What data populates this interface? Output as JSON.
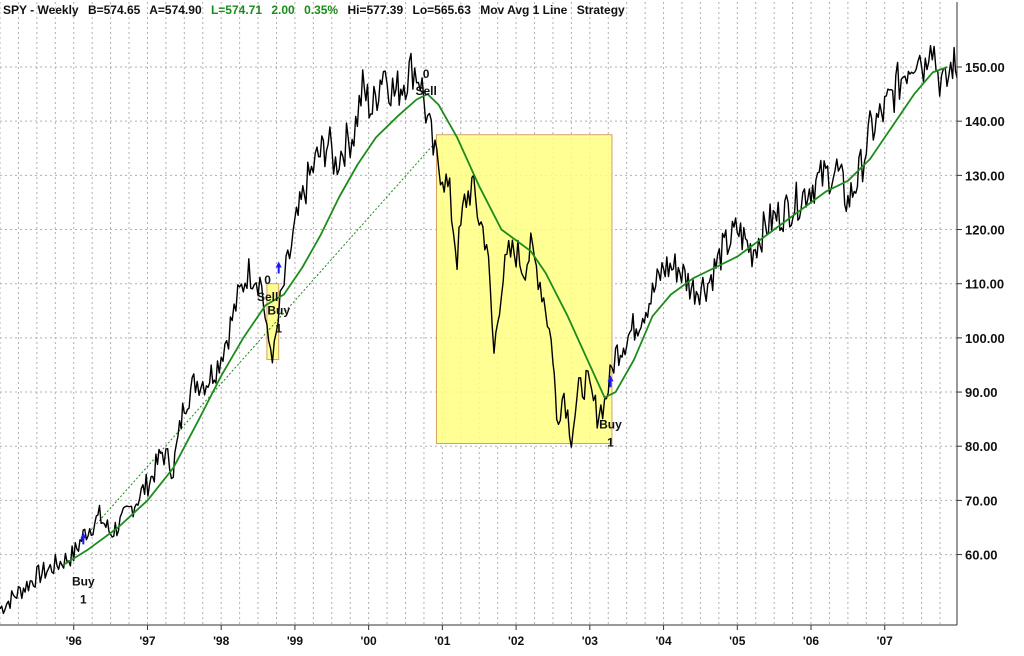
{
  "header": {
    "symbol": "SPY - Weekly",
    "bid": "B=574.65",
    "ask": "A=574.90",
    "last": "L=574.71",
    "change": "2.00",
    "change_pct": "0.35%",
    "hi": "Hi=577.39",
    "lo": "Lo=565.63",
    "study": "Mov Avg 1 Line",
    "strategy": "Strategy",
    "last_color": "#1a8c1a"
  },
  "chart_data": {
    "type": "line",
    "title": "",
    "x_range": [
      1995.0,
      2007.98
    ],
    "y_range": [
      47,
      162
    ],
    "y_ticks": [
      "60.00",
      "70.00",
      "80.00",
      "90.00",
      "100.00",
      "110.00",
      "120.00",
      "130.00",
      "140.00",
      "150.00"
    ],
    "x_ticks": [
      {
        "label": "'96",
        "x": 1996.0
      },
      {
        "label": "'97",
        "x": 1997.0
      },
      {
        "label": "'98",
        "x": 1998.0
      },
      {
        "label": "'99",
        "x": 1999.0
      },
      {
        "label": "'00",
        "x": 2000.0
      },
      {
        "label": "'01",
        "x": 2001.0
      },
      {
        "label": "'02",
        "x": 2002.0
      },
      {
        "label": "'03",
        "x": 2003.0
      },
      {
        "label": "'04",
        "x": 2004.0
      },
      {
        "label": "'05",
        "x": 2005.0
      },
      {
        "label": "'06",
        "x": 2006.0
      },
      {
        "label": "'07",
        "x": 2007.0
      }
    ],
    "grid": true,
    "series": [
      {
        "key": "price",
        "color": "#000000",
        "points": [
          [
            1995.0,
            50
          ],
          [
            1995.25,
            53
          ],
          [
            1995.5,
            56
          ],
          [
            1995.75,
            58
          ],
          [
            1996.0,
            60
          ],
          [
            1996.15,
            64
          ],
          [
            1996.35,
            67
          ],
          [
            1996.5,
            64
          ],
          [
            1996.65,
            66
          ],
          [
            1996.85,
            70
          ],
          [
            1997.05,
            74
          ],
          [
            1997.2,
            79
          ],
          [
            1997.35,
            76
          ],
          [
            1997.5,
            88
          ],
          [
            1997.65,
            92
          ],
          [
            1997.8,
            92
          ],
          [
            1997.95,
            95
          ],
          [
            1998.1,
            101
          ],
          [
            1998.2,
            106
          ],
          [
            1998.35,
            112
          ],
          [
            1998.45,
            112
          ],
          [
            1998.55,
            110
          ],
          [
            1998.62,
            100
          ],
          [
            1998.72,
            97
          ],
          [
            1998.8,
            106
          ],
          [
            1998.88,
            112
          ],
          [
            1999.0,
            120
          ],
          [
            1999.15,
            128
          ],
          [
            1999.3,
            133
          ],
          [
            1999.45,
            136
          ],
          [
            1999.55,
            132
          ],
          [
            1999.65,
            135
          ],
          [
            1999.8,
            138
          ],
          [
            1999.92,
            146
          ],
          [
            2000.05,
            142
          ],
          [
            2000.2,
            150
          ],
          [
            2000.35,
            145
          ],
          [
            2000.5,
            148
          ],
          [
            2000.6,
            150
          ],
          [
            2000.7,
            148
          ],
          [
            2000.8,
            140
          ],
          [
            2000.9,
            133
          ],
          [
            2001.0,
            131
          ],
          [
            2001.1,
            126
          ],
          [
            2001.2,
            115
          ],
          [
            2001.3,
            125
          ],
          [
            2001.4,
            128
          ],
          [
            2001.5,
            122
          ],
          [
            2001.6,
            118
          ],
          [
            2001.7,
            97
          ],
          [
            2001.8,
            110
          ],
          [
            2001.9,
            115
          ],
          [
            2002.0,
            116
          ],
          [
            2002.1,
            113
          ],
          [
            2002.2,
            116
          ],
          [
            2002.3,
            112
          ],
          [
            2002.4,
            106
          ],
          [
            2002.5,
            97
          ],
          [
            2002.55,
            85
          ],
          [
            2002.65,
            90
          ],
          [
            2002.75,
            82
          ],
          [
            2002.85,
            90
          ],
          [
            2002.95,
            92
          ],
          [
            2003.1,
            86
          ],
          [
            2003.2,
            88
          ],
          [
            2003.35,
            97
          ],
          [
            2003.5,
            100
          ],
          [
            2003.65,
            103
          ],
          [
            2003.85,
            108
          ],
          [
            2004.0,
            113
          ],
          [
            2004.2,
            113
          ],
          [
            2004.4,
            109
          ],
          [
            2004.6,
            110
          ],
          [
            2004.8,
            116
          ],
          [
            2005.0,
            120
          ],
          [
            2005.2,
            116
          ],
          [
            2005.4,
            121
          ],
          [
            2005.6,
            123
          ],
          [
            2005.8,
            125
          ],
          [
            2006.0,
            128
          ],
          [
            2006.2,
            130
          ],
          [
            2006.35,
            131
          ],
          [
            2006.5,
            125
          ],
          [
            2006.65,
            130
          ],
          [
            2006.8,
            138
          ],
          [
            2007.0,
            142
          ],
          [
            2007.15,
            146
          ],
          [
            2007.3,
            150
          ],
          [
            2007.45,
            153
          ],
          [
            2007.55,
            150
          ],
          [
            2007.62,
            157
          ],
          [
            2007.72,
            149
          ],
          [
            2007.82,
            146
          ],
          [
            2007.92,
            151
          ],
          [
            2007.98,
            148
          ]
        ]
      },
      {
        "key": "moving_average",
        "color": "#1c8c1c",
        "points": [
          [
            1995.85,
            58
          ],
          [
            1996.2,
            61
          ],
          [
            1996.6,
            65
          ],
          [
            1997.0,
            70
          ],
          [
            1997.35,
            76
          ],
          [
            1997.7,
            85
          ],
          [
            1998.0,
            93
          ],
          [
            1998.3,
            100
          ],
          [
            1998.6,
            106
          ],
          [
            1998.85,
            108
          ],
          [
            1999.1,
            113
          ],
          [
            1999.35,
            119
          ],
          [
            1999.6,
            126
          ],
          [
            1999.85,
            132
          ],
          [
            2000.1,
            137
          ],
          [
            2000.4,
            141
          ],
          [
            2000.65,
            144
          ],
          [
            2000.8,
            145
          ],
          [
            2000.95,
            143
          ],
          [
            2001.2,
            137
          ],
          [
            2001.5,
            128
          ],
          [
            2001.8,
            120
          ],
          [
            2002.0,
            118
          ],
          [
            2002.2,
            116
          ],
          [
            2002.4,
            112
          ],
          [
            2002.7,
            104
          ],
          [
            2003.0,
            95
          ],
          [
            2003.2,
            89
          ],
          [
            2003.35,
            90
          ],
          [
            2003.6,
            96
          ],
          [
            2003.85,
            104
          ],
          [
            2004.1,
            108
          ],
          [
            2004.4,
            111
          ],
          [
            2004.7,
            113
          ],
          [
            2005.0,
            115
          ],
          [
            2005.3,
            118
          ],
          [
            2005.6,
            121
          ],
          [
            2005.9,
            124
          ],
          [
            2006.2,
            127
          ],
          [
            2006.5,
            129
          ],
          [
            2006.8,
            133
          ],
          [
            2007.1,
            139
          ],
          [
            2007.4,
            145
          ],
          [
            2007.65,
            149
          ],
          [
            2007.85,
            150
          ]
        ]
      }
    ],
    "trend_line": {
      "color": "#1c8c1c",
      "from": [
        1996.2,
        64
      ],
      "to": [
        2000.9,
        136
      ]
    },
    "highlight_boxes": [
      {
        "x0": 1998.62,
        "x1": 1998.78,
        "y0": 96,
        "y1": 110,
        "color": "#ffff80"
      },
      {
        "x0": 2000.92,
        "x1": 2003.3,
        "y0": 80.5,
        "y1": 137.5,
        "color": "#ffff80"
      }
    ],
    "signals": [
      {
        "action": "Buy",
        "qty": "1",
        "x": 1996.13,
        "y": 58,
        "arrow_x": 1996.13,
        "arrow_y": 63
      },
      {
        "action": "Sell",
        "qty": "0",
        "x": 1998.63,
        "y": 107,
        "arrow_x": 1998.63,
        "arrow_y": 105
      },
      {
        "action": "Buy",
        "qty": "1",
        "x": 1998.78,
        "y": 108,
        "arrow_x": 1998.78,
        "arrow_y": 113
      },
      {
        "action": "Sell",
        "qty": "0",
        "x": 2000.78,
        "y": 145,
        "arrow_x": 2000.78,
        "arrow_y": 145
      },
      {
        "action": "Buy",
        "qty": "1",
        "x": 2003.28,
        "y": 87,
        "arrow_x": 2003.28,
        "arrow_y": 92
      }
    ]
  }
}
